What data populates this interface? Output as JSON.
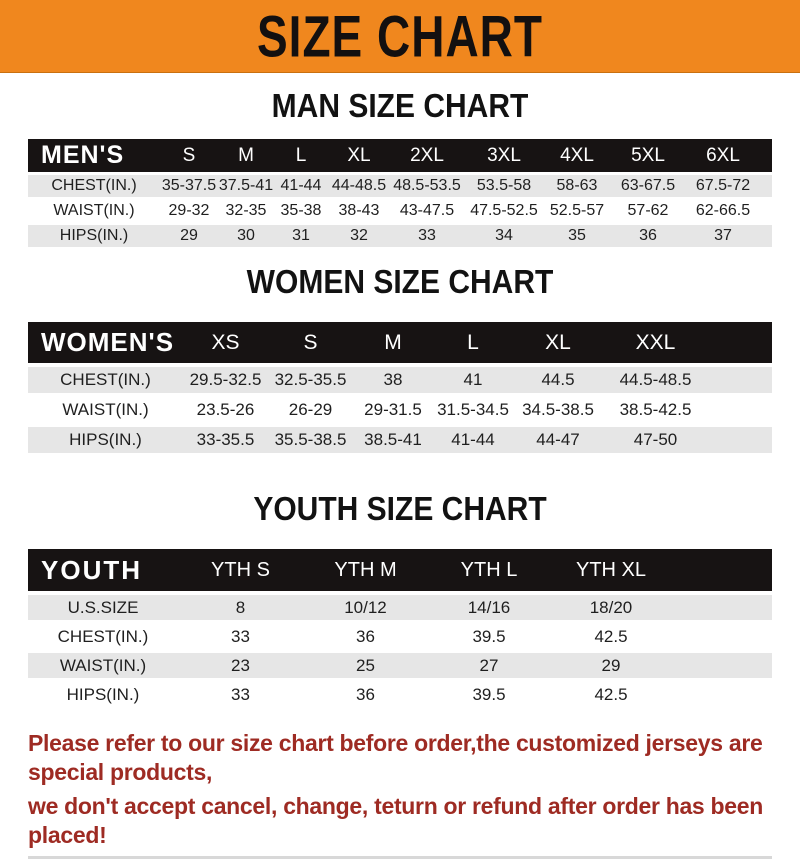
{
  "banner": {
    "title": "SIZE CHART"
  },
  "colors": {
    "banner_bg": "#F0871E",
    "header_bar_bg": "#171313",
    "header_bar_text": "#ffffff",
    "row_alt_bg": "#e6e6e6",
    "disclaimer_text": "#9E2B23"
  },
  "sections": [
    {
      "id": "men",
      "heading": "MAN SIZE CHART",
      "header_label": "MEN'S",
      "columns": [
        "S",
        "M",
        "L",
        "XL",
        "2XL",
        "3XL",
        "4XL",
        "5XL",
        "6XL"
      ],
      "rows": [
        {
          "label": "CHEST(IN.)",
          "values": [
            "35-37.5",
            "37.5-41",
            "41-44",
            "44-48.5",
            "48.5-53.5",
            "53.5-58",
            "58-63",
            "63-67.5",
            "67.5-72"
          ]
        },
        {
          "label": "WAIST(IN.)",
          "values": [
            "29-32",
            "32-35",
            "35-38",
            "38-43",
            "43-47.5",
            "47.5-52.5",
            "52.5-57",
            "57-62",
            "62-66.5"
          ]
        },
        {
          "label": "HIPS(IN.)",
          "values": [
            "29",
            "30",
            "31",
            "32",
            "33",
            "34",
            "35",
            "36",
            "37"
          ]
        }
      ]
    },
    {
      "id": "women",
      "heading": "WOMEN SIZE CHART",
      "header_label": "WOMEN'S",
      "columns": [
        "XS",
        "S",
        "M",
        "L",
        "XL",
        "XXL"
      ],
      "rows": [
        {
          "label": "CHEST(IN.)",
          "values": [
            "29.5-32.5",
            "32.5-35.5",
            "38",
            "41",
            "44.5",
            "44.5-48.5"
          ]
        },
        {
          "label": "WAIST(IN.)",
          "values": [
            "23.5-26",
            "26-29",
            "29-31.5",
            "31.5-34.5",
            "34.5-38.5",
            "38.5-42.5"
          ]
        },
        {
          "label": "HIPS(IN.)",
          "values": [
            "33-35.5",
            "35.5-38.5",
            "38.5-41",
            "41-44",
            "44-47",
            "47-50"
          ]
        }
      ]
    },
    {
      "id": "youth",
      "heading": "YOUTH SIZE CHART",
      "header_label": "YOUTH",
      "columns": [
        "YTH S",
        "YTH M",
        "YTH L",
        "YTH XL"
      ],
      "rows": [
        {
          "label": "U.S.SIZE",
          "values": [
            "8",
            "10/12",
            "14/16",
            "18/20"
          ]
        },
        {
          "label": "CHEST(IN.)",
          "values": [
            "33",
            "36",
            "39.5",
            "42.5"
          ]
        },
        {
          "label": "WAIST(IN.)",
          "values": [
            "23",
            "25",
            "27",
            "29"
          ]
        },
        {
          "label": "HIPS(IN.)",
          "values": [
            "33",
            "36",
            "39.5",
            "42.5"
          ]
        }
      ]
    }
  ],
  "disclaimer": {
    "line1": "Please refer to our size chart before order,the customized jerseys are special products,",
    "line2": "we don't accept cancel, change, teturn or refund after order has been placed!"
  }
}
